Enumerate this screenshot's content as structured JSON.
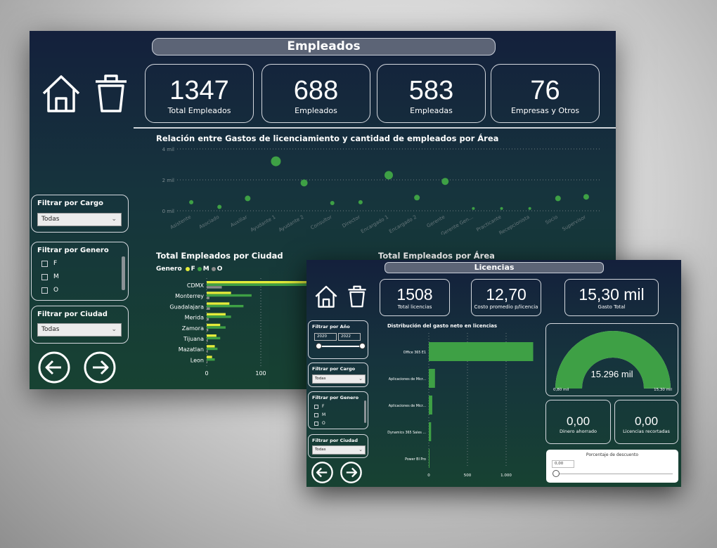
{
  "main": {
    "title": "Empleados",
    "kpis": [
      {
        "value": "1347",
        "label": "Total Empleados"
      },
      {
        "value": "688",
        "label": "Empleados"
      },
      {
        "value": "583",
        "label": "Empleadas"
      },
      {
        "value": "76",
        "label": "Empresas y Otros"
      }
    ],
    "filters": {
      "cargo": {
        "title": "Filtrar por Cargo",
        "value": "Todas"
      },
      "genero": {
        "title": "Filtrar por Genero",
        "options": [
          "F",
          "M",
          "O"
        ]
      },
      "ciudad": {
        "title": "Filtrar por Ciudad",
        "value": "Todas"
      }
    },
    "scatter_title": "Relación entre Gastos de licenciamiento y cantidad de empleados por Área",
    "ciudad_title": "Total Empleados por Ciudad",
    "area_title": "Total Empleados por Área",
    "genero_legend": {
      "label": "Genero",
      "items": [
        "F",
        "M",
        "O"
      ]
    }
  },
  "lic": {
    "title": "Licencias",
    "kpis": [
      {
        "value": "1508",
        "label": "Total licencias"
      },
      {
        "value": "12,70",
        "label": "Costo promedio p/licencia"
      },
      {
        "value": "15,30 mil",
        "label": "Gasto Total"
      }
    ],
    "filters": {
      "anio": {
        "title": "Filtrar por Año",
        "from": "2020",
        "to": "2022"
      },
      "cargo": {
        "title": "Filtrar por Cargo",
        "value": "Todas"
      },
      "genero": {
        "title": "Filtrar por Genero",
        "options": [
          "F",
          "M",
          "O"
        ]
      },
      "ciudad": {
        "title": "Filtrar por Ciudad",
        "value": "Todas"
      }
    },
    "bar_title": "Distribución del gasto neto en licencias",
    "gauge": {
      "value": "15.296 mil",
      "min": "0,80 mil",
      "max": "15,30 mil",
      "fraction": 0.999
    },
    "small_kpis": [
      {
        "value": "0,00",
        "label": "Dinero ahorrado"
      },
      {
        "value": "0,00",
        "label": "Licencias recortadas"
      }
    ],
    "slider": {
      "title": "Porcentaje de descuento",
      "value": "0,00",
      "fraction": 0
    }
  },
  "chart_data": [
    {
      "type": "scatter",
      "title": "Relación entre Gastos de licenciamiento y cantidad de empleados por Área",
      "yticks": [
        "4 mil",
        "2 mil",
        "0 mil"
      ],
      "ylim": [
        0,
        4
      ],
      "categories": [
        "Asistente",
        "Asociado",
        "Auxiliar",
        "Ayudante 1",
        "Ayudante 2",
        "Consultor",
        "Director",
        "Encargado 1",
        "Encargado 2",
        "Gerente",
        "Gerente Gen...",
        "Practicante",
        "Recepcionista",
        "Socio",
        "Supervisor"
      ],
      "values": [
        0.55,
        0.25,
        0.8,
        3.2,
        1.8,
        0.5,
        0.55,
        2.3,
        0.85,
        1.9,
        0.15,
        0.15,
        0.15,
        0.8,
        0.9
      ],
      "sizes": [
        3,
        3,
        4,
        7,
        5,
        3,
        3,
        6,
        4,
        5,
        2,
        2,
        2,
        4,
        4
      ],
      "color": "#3ea045"
    },
    {
      "type": "bar",
      "title": "Total Empleados por Ciudad",
      "categories": [
        "CDMX",
        "Monterrey",
        "Guadalajara",
        "Merida",
        "Zamora",
        "Tijuana",
        "Mazatlan",
        "Leon"
      ],
      "series": [
        {
          "name": "F",
          "color": "#e4ec3a",
          "values": [
            200,
            45,
            42,
            35,
            25,
            18,
            15,
            10
          ]
        },
        {
          "name": "M",
          "color": "#3ea045",
          "values": [
            190,
            83,
            68,
            45,
            35,
            25,
            20,
            15
          ]
        },
        {
          "name": "O",
          "color": "#8b8b8b",
          "values": [
            28,
            5,
            6,
            4,
            3,
            2,
            2,
            1
          ]
        }
      ],
      "xticks": [
        "0",
        "100"
      ]
    },
    {
      "type": "bar",
      "title": "Distribución del gasto neto en licencias",
      "categories": [
        "Office 365 E1",
        "Aplicaciones de Micr...",
        "Aplicaciones de Micr...",
        "Dynamics 365 Sales ...",
        "Power BI Pro"
      ],
      "values": [
        1350,
        80,
        45,
        30,
        5
      ],
      "xticks": [
        "0",
        "500",
        "1.000"
      ],
      "color": "#3ea045"
    }
  ],
  "colors": {
    "green": "#3ea045",
    "yellow": "#e4ec3a",
    "gray": "#8b8b8b"
  }
}
